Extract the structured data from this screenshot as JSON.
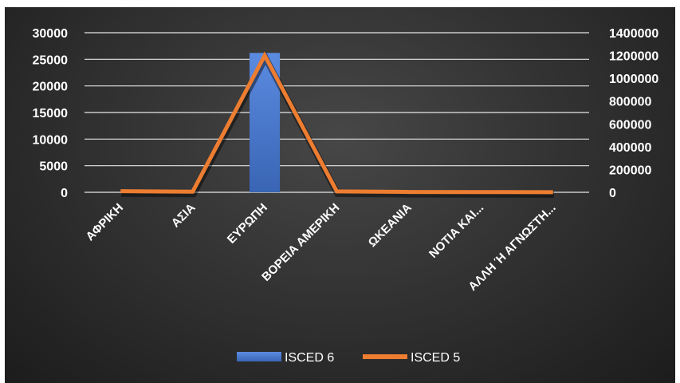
{
  "chart_data": {
    "type": "bar",
    "categories": [
      "ΑΦΡΙΚΗ",
      "ΑΣΙΑ",
      "ΕΥΡΩΠΗ",
      "ΒΟΡΕΙΑ ΑΜΕΡΙΚΗ",
      "ΩΚΕΑΝΙΑ",
      "ΝΟΤΙΑ ΚΑΙ...",
      "ΑΛΛΗ Ή ΑΓΝΩΣΤΗ..."
    ],
    "series": [
      {
        "name": "ISCED 6",
        "type": "bar",
        "axis": "left",
        "color": "#4472c4",
        "values": [
          0,
          0,
          26200,
          0,
          0,
          0,
          0
        ]
      },
      {
        "name": "ISCED 5",
        "type": "line",
        "axis": "right",
        "color": "#ed7d31",
        "values": [
          10000,
          5000,
          1200000,
          8000,
          3000,
          2000,
          1000
        ]
      }
    ],
    "y_left": {
      "min": 0,
      "max": 30000,
      "step": 5000
    },
    "y_right": {
      "min": 0,
      "max": 1400000,
      "step": 200000
    },
    "grid": true,
    "legend_position": "bottom"
  }
}
